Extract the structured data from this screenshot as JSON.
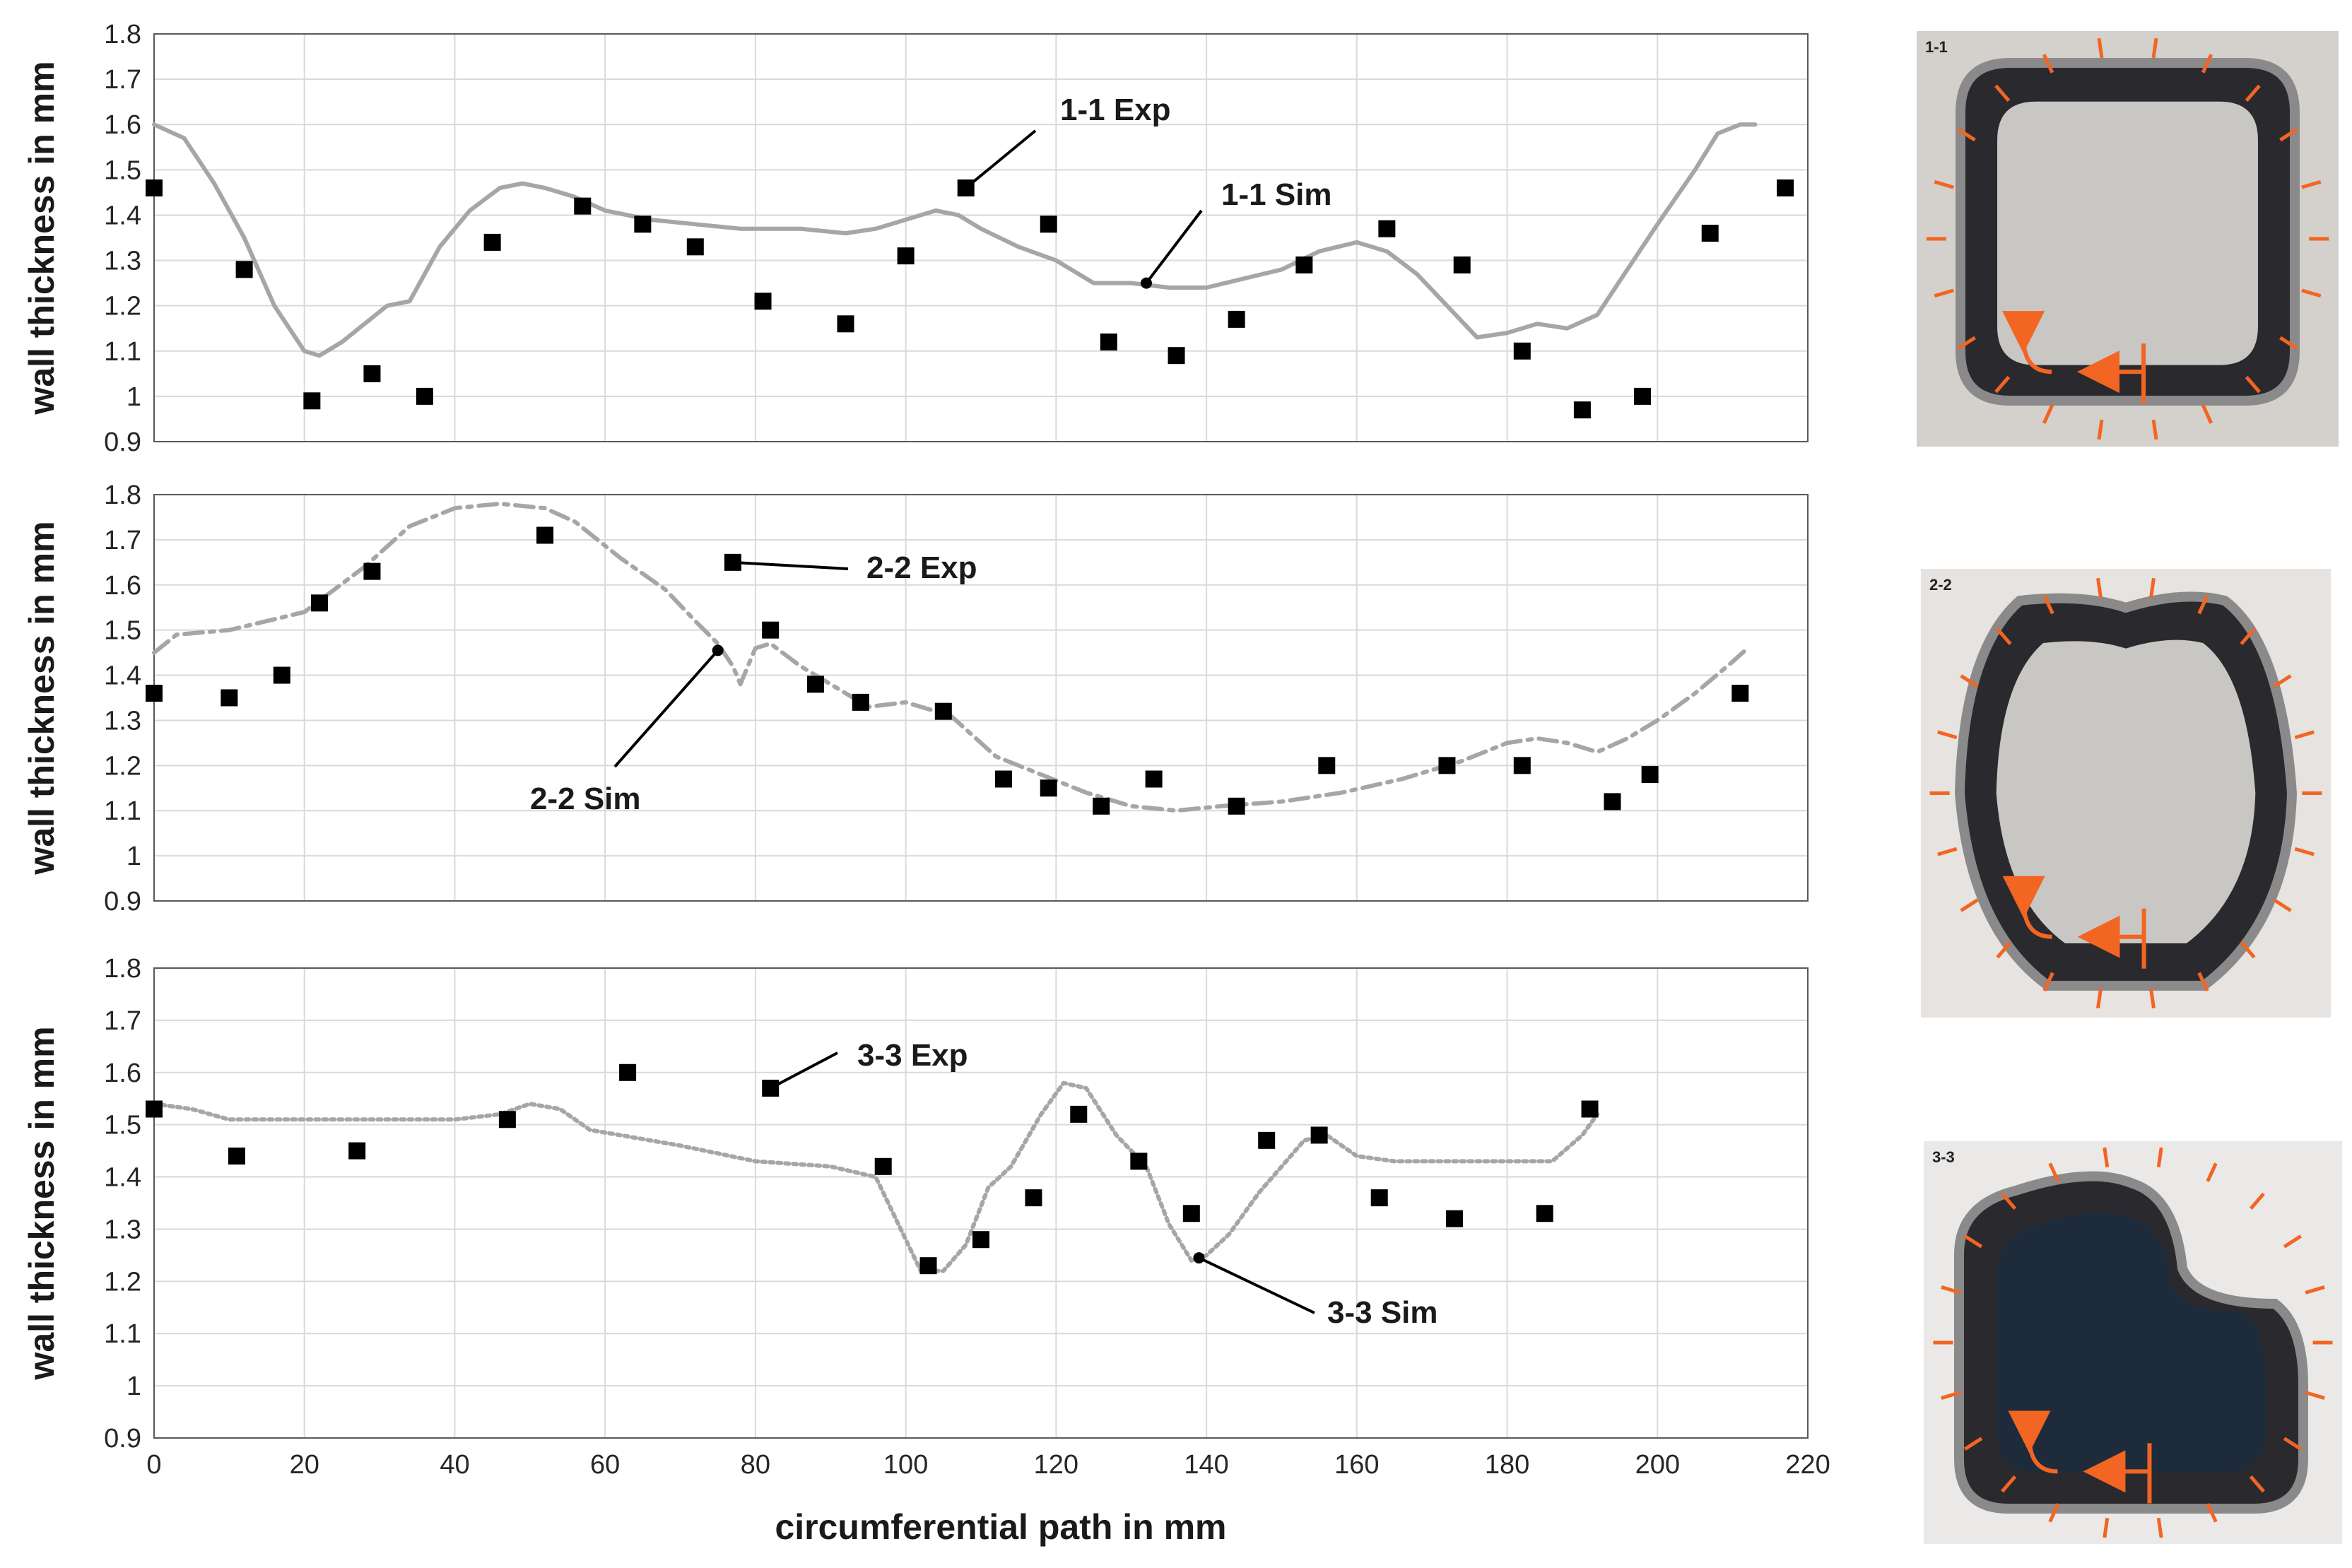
{
  "chart_data": [
    {
      "type": "line",
      "title": "",
      "xlabel": "",
      "ylabel": "wall thickness in mm",
      "xlim": [
        0,
        220
      ],
      "ylim": [
        0.9,
        1.8
      ],
      "y_ticks": [
        "0.9",
        "1",
        "1.1",
        "1.2",
        "1.3",
        "1.4",
        "1.5",
        "1.6",
        "1.7",
        "1.8"
      ],
      "x_ticks": [],
      "grid": "horizontal and vertical",
      "series": [
        {
          "name": "1-1 Exp",
          "style": "square markers",
          "color": "#000000",
          "x": [
            0,
            12,
            21,
            29,
            36,
            45,
            57,
            65,
            72,
            81,
            92,
            100,
            108,
            119,
            127,
            136,
            144,
            153,
            164,
            174,
            182,
            190,
            198,
            207,
            217
          ],
          "y": [
            1.46,
            1.28,
            0.99,
            1.05,
            1.0,
            1.34,
            1.42,
            1.38,
            1.33,
            1.21,
            1.16,
            1.31,
            1.46,
            1.38,
            1.12,
            1.09,
            1.17,
            1.29,
            1.37,
            1.29,
            1.1,
            0.97,
            1.0,
            1.36,
            1.46
          ]
        },
        {
          "name": "1-1 Sim",
          "style": "solid line",
          "color": "#a6a6a6",
          "x": [
            0,
            4,
            8,
            12,
            16,
            20,
            22,
            25,
            28,
            31,
            34,
            36,
            38,
            42,
            46,
            49,
            52,
            56,
            60,
            66,
            72,
            78,
            86,
            92,
            96,
            100,
            104,
            107,
            110,
            115,
            120,
            125,
            130,
            135,
            140,
            145,
            150,
            155,
            160,
            164,
            168,
            172,
            176,
            180,
            184,
            188,
            192,
            196,
            200,
            205,
            208,
            211,
            213
          ],
          "y": [
            1.6,
            1.57,
            1.47,
            1.35,
            1.2,
            1.1,
            1.09,
            1.12,
            1.16,
            1.2,
            1.21,
            1.27,
            1.33,
            1.41,
            1.46,
            1.47,
            1.46,
            1.44,
            1.41,
            1.39,
            1.38,
            1.37,
            1.37,
            1.36,
            1.37,
            1.39,
            1.41,
            1.4,
            1.37,
            1.33,
            1.3,
            1.25,
            1.25,
            1.24,
            1.24,
            1.26,
            1.28,
            1.32,
            1.34,
            1.32,
            1.27,
            1.2,
            1.13,
            1.14,
            1.16,
            1.15,
            1.18,
            1.28,
            1.38,
            1.5,
            1.58,
            1.6,
            1.6
          ]
        }
      ],
      "annotations": [
        {
          "text": "1-1 Exp",
          "x": 108,
          "y": 1.46
        },
        {
          "text": "1-1 Sim",
          "x": 132,
          "y": 1.25
        }
      ]
    },
    {
      "type": "line",
      "title": "",
      "xlabel": "",
      "ylabel": "wall thickness in mm",
      "xlim": [
        0,
        220
      ],
      "ylim": [
        0.9,
        1.8
      ],
      "y_ticks": [
        "0.9",
        "1",
        "1.1",
        "1.2",
        "1.3",
        "1.4",
        "1.5",
        "1.6",
        "1.7",
        "1.8"
      ],
      "x_ticks": [],
      "grid": "horizontal and vertical",
      "series": [
        {
          "name": "2-2 Exp",
          "style": "square markers",
          "color": "#000000",
          "x": [
            0,
            10,
            17,
            22,
            29,
            52,
            77,
            82,
            88,
            94,
            105,
            113,
            119,
            126,
            133,
            144,
            156,
            172,
            182,
            194,
            199,
            211
          ],
          "y": [
            1.36,
            1.35,
            1.4,
            1.56,
            1.63,
            1.71,
            1.65,
            1.5,
            1.38,
            1.34,
            1.32,
            1.17,
            1.15,
            1.11,
            1.17,
            1.11,
            1.2,
            1.2,
            1.2,
            1.12,
            1.18,
            1.36
          ]
        },
        {
          "name": "2-2 Sim",
          "style": "dash-dot line",
          "color": "#a6a6a6",
          "x": [
            0,
            3,
            10,
            20,
            28,
            34,
            40,
            46,
            52,
            56,
            62,
            68,
            72,
            75,
            77,
            78,
            80,
            82,
            86,
            90,
            95,
            100,
            106,
            112,
            118,
            124,
            130,
            136,
            142,
            150,
            158,
            166,
            174,
            180,
            184,
            188,
            192,
            196,
            200,
            205,
            210,
            212
          ],
          "y": [
            1.45,
            1.49,
            1.5,
            1.54,
            1.64,
            1.73,
            1.77,
            1.78,
            1.77,
            1.74,
            1.66,
            1.59,
            1.52,
            1.47,
            1.42,
            1.38,
            1.46,
            1.47,
            1.42,
            1.38,
            1.33,
            1.34,
            1.31,
            1.22,
            1.18,
            1.14,
            1.11,
            1.1,
            1.11,
            1.12,
            1.14,
            1.17,
            1.21,
            1.25,
            1.26,
            1.25,
            1.23,
            1.26,
            1.3,
            1.36,
            1.43,
            1.46
          ]
        }
      ],
      "annotations": [
        {
          "text": "2-2 Exp",
          "x": 77,
          "y": 1.65
        },
        {
          "text": "2-2 Sim",
          "x": 75,
          "y": 1.455
        }
      ]
    },
    {
      "type": "line",
      "title": "",
      "xlabel": "circumferential path in mm",
      "ylabel": "wall thickness in mm",
      "xlim": [
        0,
        220
      ],
      "ylim": [
        0.9,
        1.8
      ],
      "y_ticks": [
        "0.9",
        "1",
        "1.1",
        "1.2",
        "1.3",
        "1.4",
        "1.5",
        "1.6",
        "1.7",
        "1.8"
      ],
      "x_ticks": [
        "0",
        "20",
        "40",
        "60",
        "80",
        "100",
        "120",
        "140",
        "160",
        "180",
        "200",
        "220"
      ],
      "grid": "horizontal and vertical",
      "series": [
        {
          "name": "3-3 Exp",
          "style": "square markers",
          "color": "#000000",
          "x": [
            0,
            11,
            27,
            47,
            63,
            82,
            97,
            103,
            110,
            117,
            123,
            131,
            138,
            148,
            155,
            163,
            173,
            185,
            191
          ],
          "y": [
            1.53,
            1.44,
            1.45,
            1.51,
            1.6,
            1.57,
            1.42,
            1.23,
            1.28,
            1.36,
            1.52,
            1.43,
            1.33,
            1.47,
            1.48,
            1.36,
            1.32,
            1.33,
            1.53
          ]
        },
        {
          "name": "3-3 Sim",
          "style": "dotted line",
          "color": "#a6a6a6",
          "x": [
            0,
            5,
            10,
            20,
            30,
            40,
            46,
            50,
            54,
            58,
            62,
            70,
            80,
            90,
            96,
            99,
            102,
            105,
            108,
            111,
            114,
            118,
            121,
            124,
            128,
            132,
            135,
            138,
            140,
            143,
            147,
            150,
            153,
            156,
            160,
            165,
            170,
            180,
            186,
            190,
            192
          ],
          "y": [
            1.54,
            1.53,
            1.51,
            1.51,
            1.51,
            1.51,
            1.52,
            1.54,
            1.53,
            1.49,
            1.48,
            1.46,
            1.43,
            1.42,
            1.4,
            1.31,
            1.22,
            1.22,
            1.27,
            1.38,
            1.42,
            1.52,
            1.58,
            1.57,
            1.48,
            1.42,
            1.31,
            1.24,
            1.25,
            1.29,
            1.37,
            1.42,
            1.47,
            1.48,
            1.44,
            1.43,
            1.43,
            1.43,
            1.43,
            1.48,
            1.52
          ]
        }
      ],
      "annotations": [
        {
          "text": "3-3 Exp",
          "x": 82,
          "y": 1.57
        },
        {
          "text": "3-3 Sim",
          "x": 139,
          "y": 1.245
        }
      ]
    }
  ],
  "photos": [
    {
      "label": "1-1",
      "shape": "cross-section-square",
      "marker_color": "#f26522"
    },
    {
      "label": "2-2",
      "shape": "cross-section-rounded",
      "marker_color": "#f26522"
    },
    {
      "label": "3-3",
      "shape": "cross-section-indented",
      "marker_color": "#f26522"
    }
  ]
}
